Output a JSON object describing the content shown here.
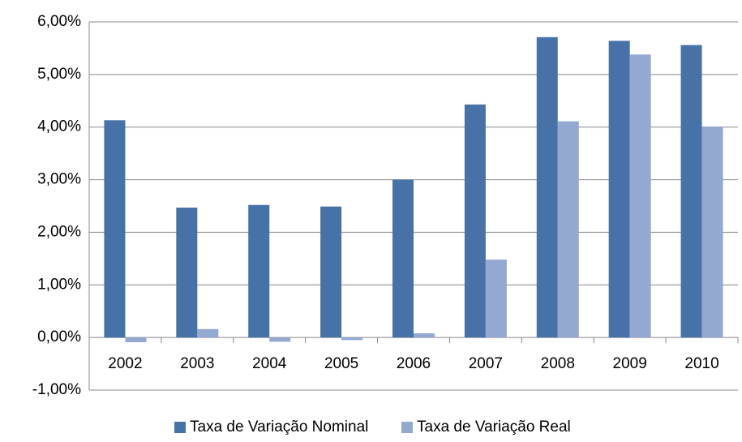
{
  "chart_data": {
    "type": "bar",
    "categories": [
      "2002",
      "2003",
      "2004",
      "2005",
      "2006",
      "2007",
      "2008",
      "2009",
      "2010"
    ],
    "series": [
      {
        "name": "Taxa de Variação Nominal",
        "color": "#4672a8",
        "values": [
          4.13,
          2.47,
          2.52,
          2.49,
          3.0,
          4.43,
          5.71,
          5.64,
          5.56
        ]
      },
      {
        "name": "Taxa de Variação Real",
        "color": "#93a9d2",
        "values": [
          -0.09,
          0.16,
          -0.08,
          -0.05,
          0.08,
          1.48,
          4.11,
          5.38,
          4.01
        ]
      }
    ],
    "ylim": [
      -1,
      6
    ],
    "yticks": [
      {
        "value": -1,
        "label": "-1,00%"
      },
      {
        "value": 0,
        "label": "0,00%"
      },
      {
        "value": 1,
        "label": "1,00%"
      },
      {
        "value": 2,
        "label": "2,00%"
      },
      {
        "value": 3,
        "label": "3,00%"
      },
      {
        "value": 4,
        "label": "4,00%"
      },
      {
        "value": 5,
        "label": "5,00%"
      },
      {
        "value": 6,
        "label": "6,00%"
      }
    ],
    "grid": true,
    "legend": "bottom"
  }
}
